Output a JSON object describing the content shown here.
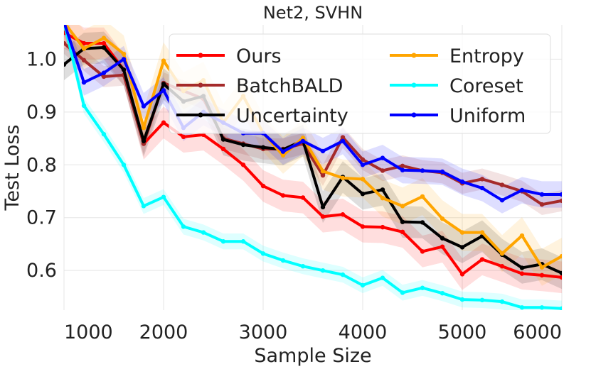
{
  "chart_data": {
    "type": "line",
    "title": "Net2, SVHN",
    "xlabel": "Sample Size",
    "ylabel": "Test Loss",
    "xlim": [
      1000,
      6000
    ],
    "ylim": [
      0.525,
      1.065
    ],
    "xticks": [
      1000,
      2000,
      3000,
      4000,
      5000,
      6000
    ],
    "xtick_labels": [
      "1000",
      "2000",
      "3000",
      "4000",
      "5000",
      "6000"
    ],
    "yticks": [
      0.6,
      0.7,
      0.8,
      0.9,
      1.0
    ],
    "ytick_labels": [
      "0.6",
      "0.7",
      "0.8",
      "0.9",
      "1.0"
    ],
    "grid": true,
    "legend_position": "top-right",
    "legend_columns": 2,
    "x": [
      1000,
      1200,
      1400,
      1600,
      1800,
      2000,
      2200,
      2400,
      2600,
      2800,
      3000,
      3200,
      3400,
      3600,
      3800,
      4000,
      4200,
      4400,
      4600,
      4800,
      5000,
      5200,
      5400,
      5600,
      5800,
      6000
    ],
    "series": [
      {
        "name": "Ours",
        "color": "#ff0000",
        "band": 0.03,
        "values": [
          1.05,
          1.03,
          1.03,
          0.98,
          0.84,
          0.88,
          0.853,
          0.857,
          0.83,
          0.8,
          0.76,
          0.742,
          0.738,
          0.702,
          0.706,
          0.683,
          0.682,
          0.673,
          0.636,
          0.645,
          0.593,
          0.621,
          0.608,
          0.594,
          0.591,
          0.587
        ]
      },
      {
        "name": "BatchBALD",
        "color": "#a52a2a",
        "band": 0.02,
        "values": [
          1.03,
          0.998,
          0.967,
          0.97,
          0.84,
          0.955,
          0.94,
          0.925,
          0.85,
          0.84,
          0.83,
          0.83,
          0.84,
          0.78,
          0.852,
          0.81,
          0.789,
          0.798,
          0.789,
          0.785,
          0.765,
          0.773,
          0.762,
          0.75,
          0.725,
          0.732
        ]
      },
      {
        "name": "Uncertainty",
        "color": "#000000",
        "band": 0.03,
        "values": [
          0.99,
          1.02,
          1.022,
          0.98,
          0.845,
          0.953,
          0.92,
          0.93,
          0.848,
          0.838,
          0.833,
          0.829,
          0.846,
          0.72,
          0.777,
          0.745,
          0.753,
          0.692,
          0.691,
          0.661,
          0.644,
          0.665,
          0.63,
          0.605,
          0.612,
          0.595
        ]
      },
      {
        "name": "Entropy",
        "color": "#ffa500",
        "band": 0.035,
        "values": [
          1.07,
          1.02,
          1.04,
          1.01,
          0.87,
          0.997,
          0.94,
          0.96,
          0.88,
          0.93,
          0.86,
          0.818,
          0.851,
          0.788,
          0.775,
          0.773,
          0.737,
          0.722,
          0.74,
          0.698,
          0.672,
          0.672,
          0.632,
          0.666,
          0.606,
          0.627
        ]
      },
      {
        "name": "Coreset",
        "color": "#00ffff",
        "band": 0.015,
        "values": [
          1.07,
          0.912,
          0.858,
          0.8,
          0.722,
          0.739,
          0.683,
          0.672,
          0.655,
          0.655,
          0.632,
          0.619,
          0.608,
          0.6,
          0.592,
          0.572,
          0.586,
          0.558,
          0.567,
          0.557,
          0.545,
          0.544,
          0.541,
          0.53,
          0.53,
          0.528
        ]
      },
      {
        "name": "Uniform",
        "color": "#0000ff",
        "band": 0.025,
        "values": [
          1.07,
          0.956,
          0.974,
          1.0,
          0.911,
          0.941,
          0.87,
          0.9,
          0.88,
          0.86,
          0.86,
          0.825,
          0.845,
          0.826,
          0.845,
          0.8,
          0.813,
          0.79,
          0.789,
          0.787,
          0.768,
          0.756,
          0.733,
          0.752,
          0.744,
          0.744
        ]
      }
    ]
  }
}
